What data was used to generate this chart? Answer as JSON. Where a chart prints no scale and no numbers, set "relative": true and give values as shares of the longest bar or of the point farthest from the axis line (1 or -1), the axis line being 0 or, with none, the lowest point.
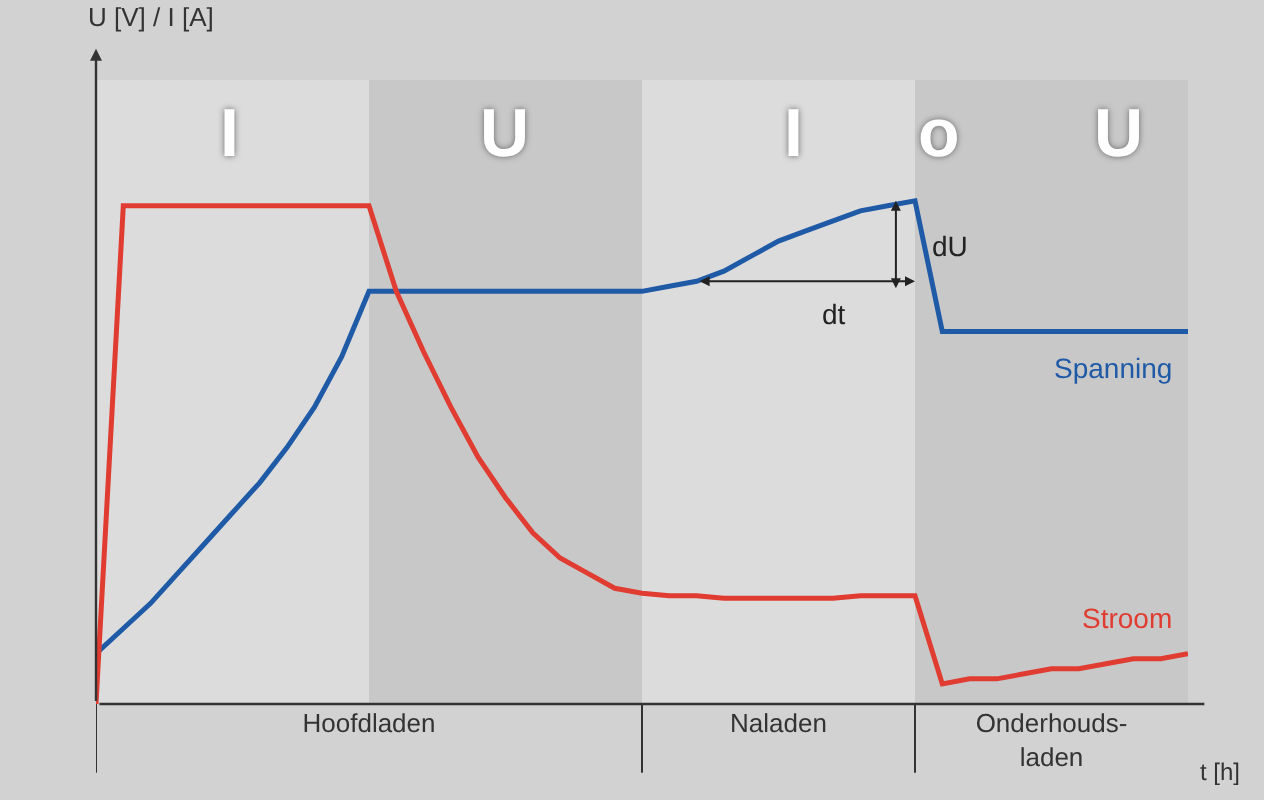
{
  "chart_data": {
    "type": "line",
    "relative": true,
    "xlabel": "t [h]",
    "categories": [
      null,
      null,
      null,
      null,
      null,
      null,
      null,
      null,
      null,
      null,
      "Hoofdladen",
      null,
      null,
      null,
      null,
      null,
      null,
      null,
      null,
      null,
      null,
      null,
      null,
      null,
      null,
      "Naladen",
      null,
      null,
      null,
      null,
      null,
      null,
      null,
      null,
      null,
      "Onderhouds-\nladen",
      null,
      null,
      null,
      null,
      null
    ],
    "series": [
      {
        "name": "Spanning",
        "color": "#1f5aa6",
        "values": [
          0.1,
          0.15,
          0.2,
          0.26,
          0.32,
          0.38,
          0.44,
          0.51,
          0.59,
          0.69,
          0.82,
          0.82,
          0.82,
          0.82,
          0.82,
          0.82,
          0.82,
          0.82,
          0.82,
          0.82,
          0.82,
          0.83,
          0.84,
          0.86,
          0.89,
          0.92,
          0.94,
          0.96,
          0.98,
          0.99,
          1.0,
          0.74,
          0.74,
          0.74,
          0.74,
          0.74,
          0.74,
          0.74,
          0.74,
          0.74,
          0.74
        ]
      },
      {
        "name": "Stroom",
        "color": "#e03c31",
        "values": [
          0,
          0.99,
          0.99,
          0.99,
          0.99,
          0.99,
          0.99,
          0.99,
          0.99,
          0.99,
          0.99,
          0.82,
          0.7,
          0.59,
          0.49,
          0.41,
          0.34,
          0.29,
          0.26,
          0.23,
          0.22,
          0.215,
          0.215,
          0.21,
          0.21,
          0.21,
          0.21,
          0.21,
          0.215,
          0.215,
          0.215,
          0.04,
          0.05,
          0.05,
          0.06,
          0.07,
          0.07,
          0.08,
          0.09,
          0.09,
          0.1
        ]
      }
    ],
    "annotations": [
      "I",
      "U",
      "I",
      "o",
      "U",
      "dU",
      "dt",
      "U [V] / I [A]"
    ],
    "grid": false,
    "legend": false,
    "marker": "none",
    "line_style": "solid"
  }
}
